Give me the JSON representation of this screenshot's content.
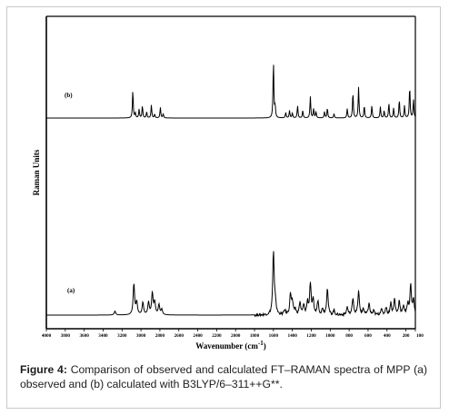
{
  "chart_data": {
    "type": "line",
    "title": "",
    "xlabel": "Wavenumber (cm",
    "xlabel_sup": "-1",
    "xlabel_close": ")",
    "ylabel": "Raman Units",
    "xlim": [
      4000,
      100
    ],
    "x_reversed": true,
    "grid": false,
    "x_ticks": [
      4000,
      3800,
      3600,
      3400,
      3200,
      3000,
      2800,
      2600,
      2400,
      2200,
      2000,
      1800,
      1600,
      1400,
      1200,
      1000,
      800,
      600,
      400,
      200,
      100
    ],
    "x_tick_labels": [
      "4000",
      "3800",
      "3600",
      "3400",
      "3200",
      "3000",
      "2800",
      "2600",
      "2400",
      "2200",
      "2000",
      "1800",
      "1600",
      "1400",
      "1200",
      "1000",
      "800",
      "600",
      "400",
      "200",
      "100"
    ],
    "series": [
      {
        "name": "(b)",
        "color": "#000000",
        "peaks": [
          [
            3086,
            0.45
          ],
          [
            3060,
            0.08
          ],
          [
            3020,
            0.14
          ],
          [
            2985,
            0.2
          ],
          [
            2940,
            0.1
          ],
          [
            2890,
            0.21
          ],
          [
            2855,
            0.06
          ],
          [
            2795,
            0.17
          ],
          [
            2765,
            0.07
          ],
          [
            1600,
            0.92
          ],
          [
            1582,
            0.18
          ],
          [
            1470,
            0.09
          ],
          [
            1430,
            0.12
          ],
          [
            1400,
            0.08
          ],
          [
            1345,
            0.2
          ],
          [
            1290,
            0.12
          ],
          [
            1210,
            0.35
          ],
          [
            1175,
            0.15
          ],
          [
            1150,
            0.1
          ],
          [
            1060,
            0.1
          ],
          [
            1030,
            0.16
          ],
          [
            960,
            0.07
          ],
          [
            820,
            0.15
          ],
          [
            760,
            0.42
          ],
          [
            700,
            0.5
          ],
          [
            640,
            0.2
          ],
          [
            560,
            0.2
          ],
          [
            470,
            0.18
          ],
          [
            430,
            0.12
          ],
          [
            380,
            0.24
          ],
          [
            330,
            0.16
          ],
          [
            270,
            0.3
          ],
          [
            215,
            0.2
          ],
          [
            160,
            0.52
          ],
          [
            120,
            0.3
          ]
        ]
      },
      {
        "name": "(a)",
        "color": "#000000",
        "peaks": [
          [
            3275,
            0.05
          ],
          [
            3075,
            0.4
          ],
          [
            3045,
            0.16
          ],
          [
            2980,
            0.16
          ],
          [
            2920,
            0.16
          ],
          [
            2880,
            0.28
          ],
          [
            2855,
            0.16
          ],
          [
            2810,
            0.13
          ],
          [
            2780,
            0.07
          ],
          [
            1600,
            0.8
          ],
          [
            1580,
            0.15
          ],
          [
            1480,
            0.06
          ],
          [
            1420,
            0.27
          ],
          [
            1400,
            0.15
          ],
          [
            1370,
            0.07
          ],
          [
            1320,
            0.16
          ],
          [
            1280,
            0.12
          ],
          [
            1240,
            0.16
          ],
          [
            1210,
            0.4
          ],
          [
            1180,
            0.18
          ],
          [
            1130,
            0.18
          ],
          [
            1080,
            0.08
          ],
          [
            1030,
            0.35
          ],
          [
            960,
            0.06
          ],
          [
            820,
            0.1
          ],
          [
            760,
            0.22
          ],
          [
            700,
            0.3
          ],
          [
            650,
            0.08
          ],
          [
            590,
            0.15
          ],
          [
            540,
            0.05
          ],
          [
            460,
            0.08
          ],
          [
            410,
            0.1
          ],
          [
            360,
            0.15
          ],
          [
            320,
            0.2
          ],
          [
            270,
            0.18
          ],
          [
            225,
            0.12
          ],
          [
            180,
            0.14
          ],
          [
            150,
            0.38
          ],
          [
            120,
            0.2
          ]
        ]
      }
    ]
  },
  "caption": {
    "label": "Figure 4:",
    "text": "Comparison of observed and calculated FT–RAMAN spectra of MPP (a) observed and (b) calculated with B3LYP/6–311++G**."
  }
}
